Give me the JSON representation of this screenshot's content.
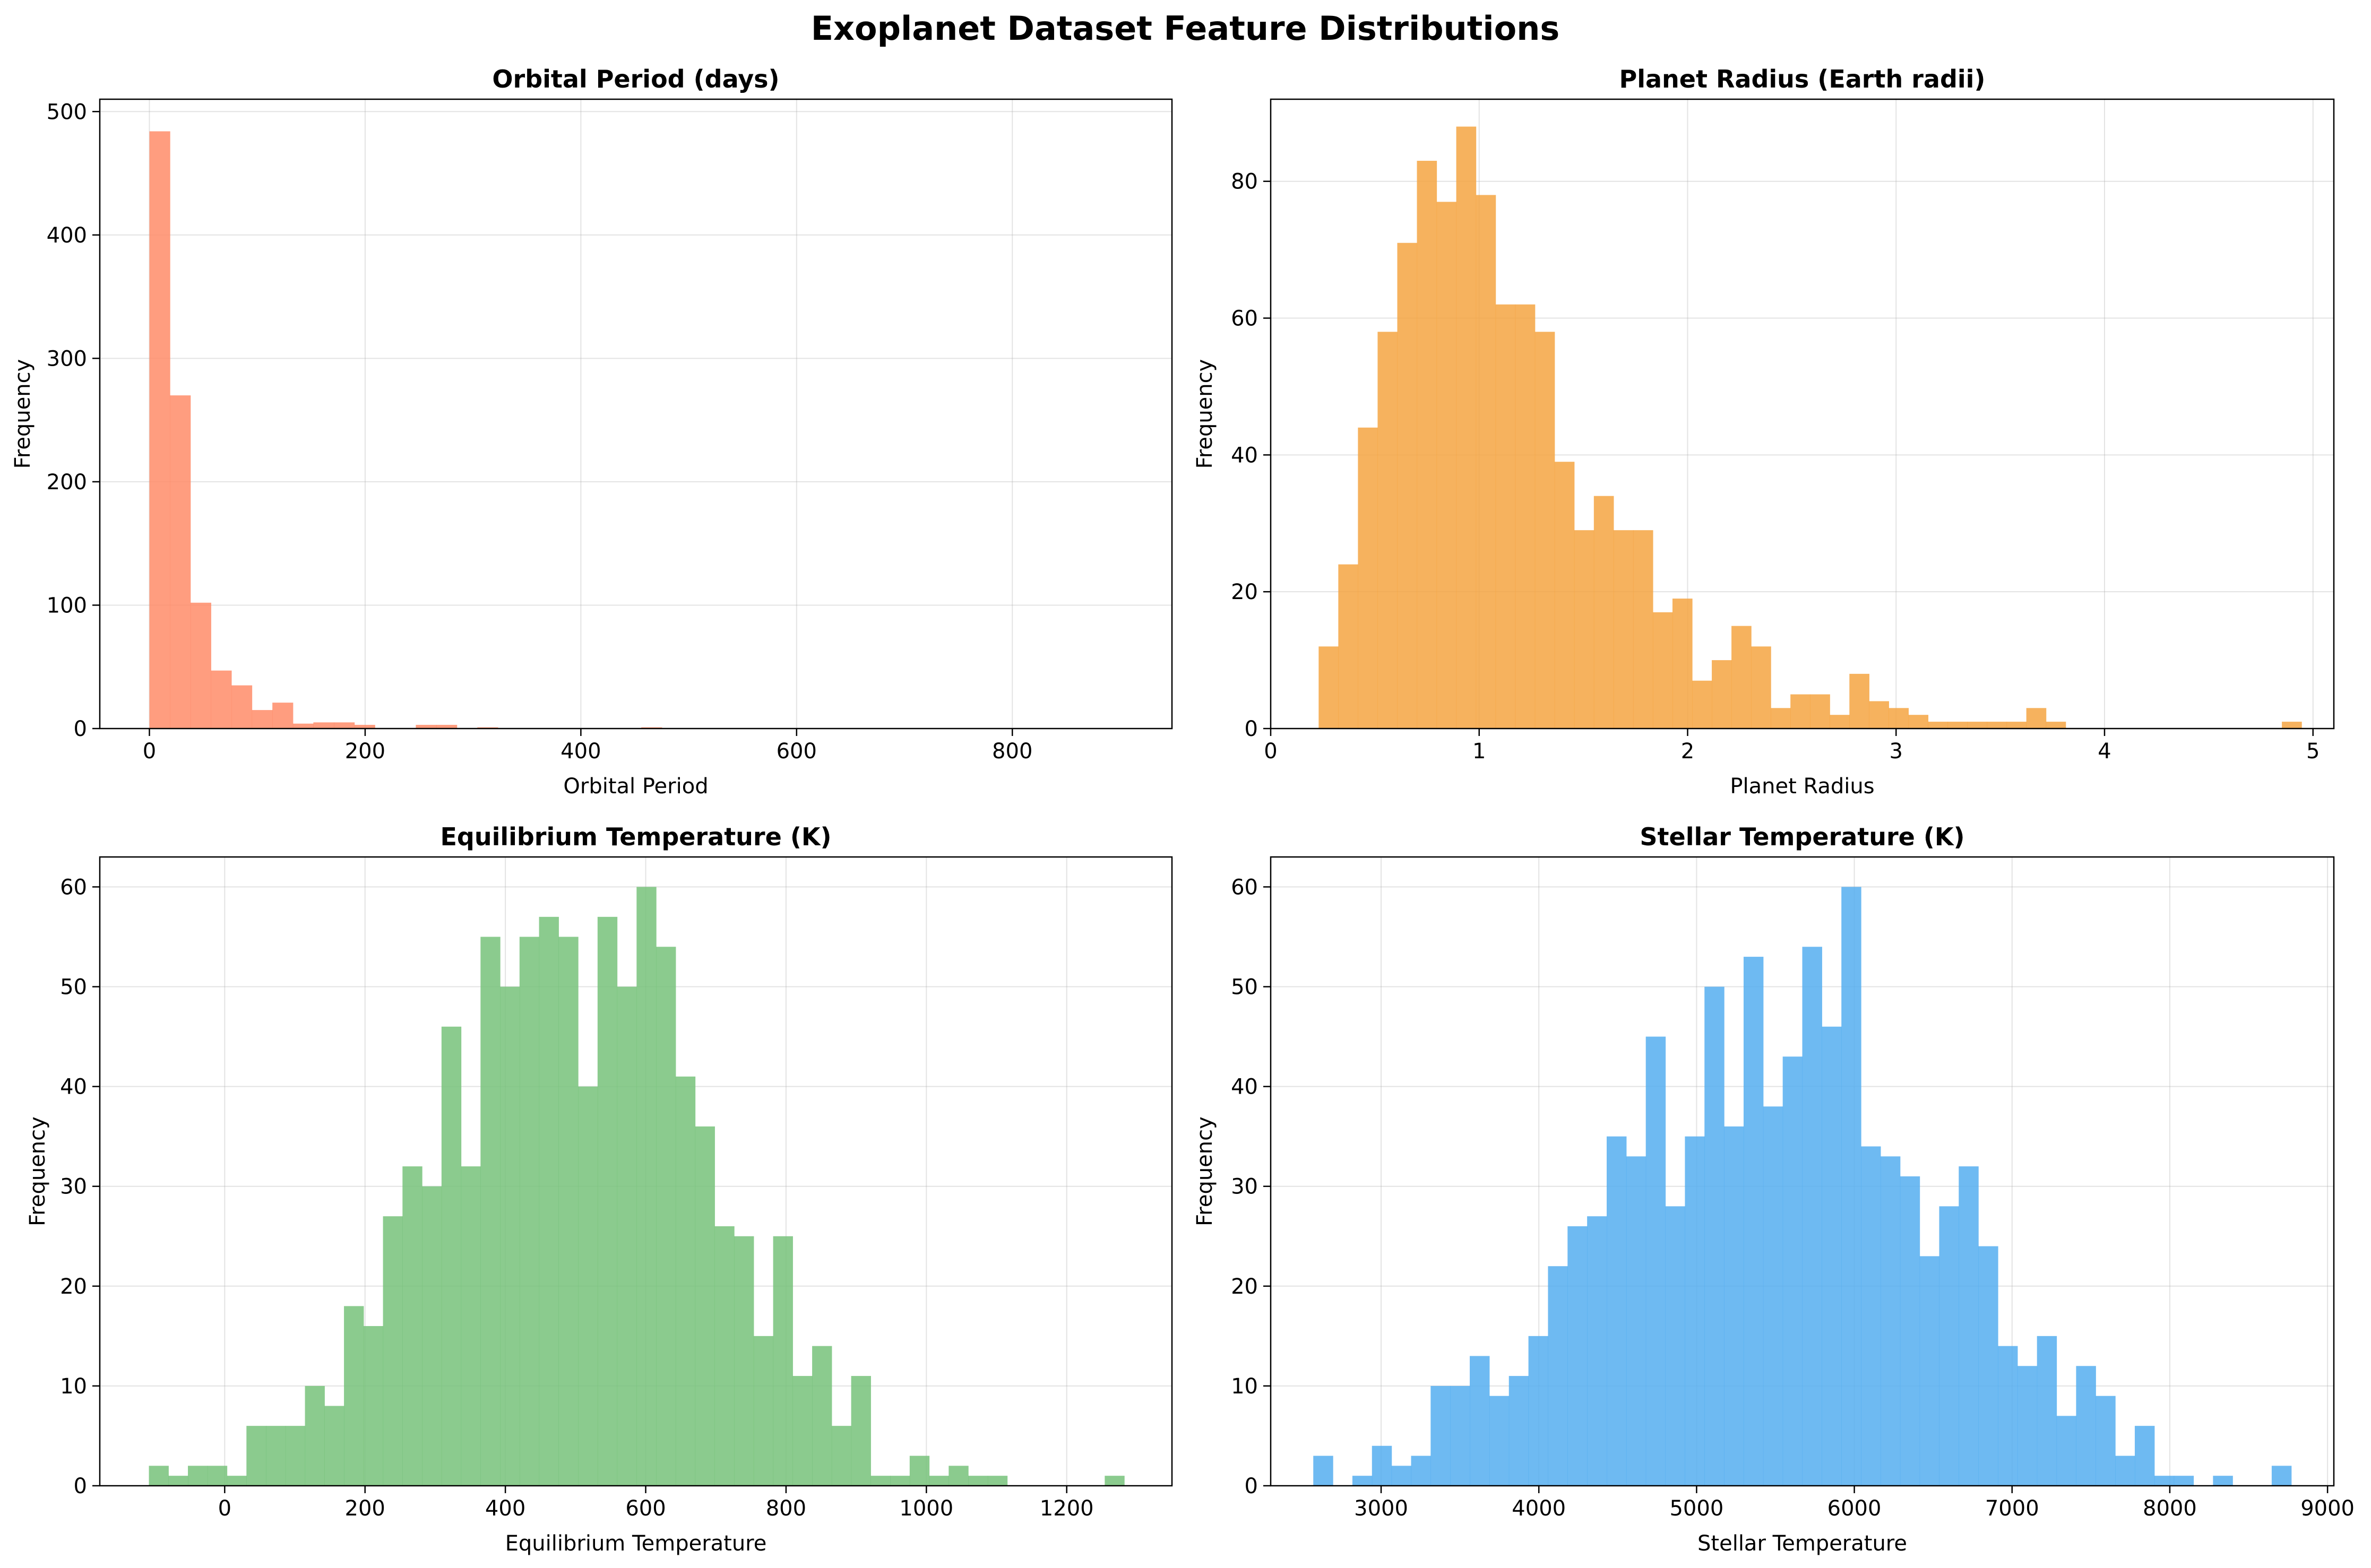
{
  "figure_title": "Exoplanet Dataset Feature Distributions",
  "chart_data": [
    {
      "type": "bar",
      "title": "Orbital Period (days)",
      "xlabel": "Orbital Period",
      "ylabel": "Frequency",
      "color": "#FF8C69",
      "grid": true,
      "xlim": [
        -46,
        948
      ],
      "ylim": [
        0,
        510
      ],
      "xticks": [
        0,
        200,
        400,
        600,
        800
      ],
      "yticks": [
        0,
        100,
        200,
        300,
        400,
        500
      ],
      "bin_start": 0,
      "bin_width": 19,
      "values": [
        484,
        270,
        102,
        47,
        35,
        15,
        21,
        4,
        5,
        5,
        3,
        0,
        0,
        3,
        3,
        0,
        1,
        0,
        0,
        0,
        0,
        0,
        0,
        0,
        1,
        0,
        0,
        0,
        0,
        0,
        0,
        0,
        0,
        0,
        0,
        0,
        0,
        0,
        0,
        0,
        0,
        0,
        0,
        0,
        0,
        0,
        0,
        0,
        0,
        0
      ]
    },
    {
      "type": "bar",
      "title": "Planet Radius (Earth radii)",
      "xlabel": "Planet Radius",
      "ylabel": "Frequency",
      "color": "#F5A442",
      "grid": true,
      "xlim": [
        0,
        5.1
      ],
      "ylim": [
        0,
        92
      ],
      "xticks": [
        0,
        1,
        2,
        3,
        4,
        5
      ],
      "yticks": [
        0,
        20,
        40,
        60,
        80
      ],
      "bin_start": 0.23,
      "bin_width": 0.0943,
      "values": [
        12,
        24,
        44,
        58,
        71,
        83,
        77,
        88,
        78,
        62,
        62,
        58,
        39,
        29,
        34,
        29,
        29,
        17,
        19,
        7,
        10,
        15,
        12,
        3,
        5,
        5,
        2,
        8,
        4,
        3,
        2,
        1,
        1,
        1,
        1,
        1,
        3,
        1,
        0,
        0,
        0,
        0,
        0,
        0,
        0,
        0,
        0,
        0,
        0,
        1
      ]
    },
    {
      "type": "bar",
      "title": "Equilibrium Temperature (K)",
      "xlabel": "Equilibrium Temperature",
      "ylabel": "Frequency",
      "color": "#77C27A",
      "grid": true,
      "xlim": [
        -178,
        1350
      ],
      "ylim": [
        0,
        63
      ],
      "xticks": [
        0,
        200,
        400,
        600,
        800,
        1000,
        1200
      ],
      "yticks": [
        0,
        10,
        20,
        30,
        40,
        50,
        60
      ],
      "bin_start": -108,
      "bin_width": 27.8,
      "values": [
        2,
        1,
        2,
        2,
        1,
        6,
        6,
        6,
        10,
        8,
        18,
        16,
        27,
        32,
        30,
        46,
        32,
        55,
        50,
        55,
        57,
        55,
        40,
        57,
        50,
        60,
        54,
        41,
        36,
        26,
        25,
        15,
        25,
        11,
        14,
        6,
        11,
        1,
        1,
        3,
        1,
        2,
        1,
        1,
        0,
        0,
        0,
        0,
        0,
        1
      ]
    },
    {
      "type": "bar",
      "title": "Stellar Temperature (K)",
      "xlabel": "Stellar Temperature",
      "ylabel": "Frequency",
      "color": "#55AEF0",
      "grid": true,
      "xlim": [
        2300,
        9040
      ],
      "ylim": [
        0,
        63
      ],
      "xticks": [
        3000,
        4000,
        5000,
        6000,
        7000,
        8000,
        9000
      ],
      "yticks": [
        0,
        10,
        20,
        30,
        40,
        50,
        60
      ],
      "bin_start": 2570,
      "bin_width": 124,
      "values": [
        3,
        0,
        1,
        4,
        2,
        3,
        10,
        10,
        13,
        9,
        11,
        15,
        22,
        26,
        27,
        35,
        33,
        45,
        28,
        35,
        50,
        36,
        53,
        38,
        43,
        54,
        46,
        60,
        34,
        33,
        31,
        23,
        28,
        32,
        24,
        14,
        12,
        15,
        7,
        12,
        9,
        3,
        6,
        1,
        1,
        0,
        1,
        0,
        0,
        2
      ]
    }
  ]
}
